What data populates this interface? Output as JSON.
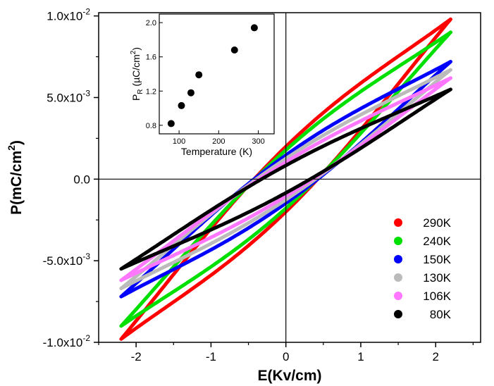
{
  "chart_data": [
    {
      "type": "line",
      "xlabel": "E(Kv/cm)",
      "ylabel_parts": {
        "base": "P(mC/cm",
        "exp": "2",
        "close": ")"
      },
      "xlim": [
        -2.5,
        2.6
      ],
      "ylim": [
        -0.01,
        0.0102
      ],
      "x_ticks": [
        -2,
        -1,
        0,
        1,
        2
      ],
      "x_tick_labels": [
        "-2",
        "-1",
        "0",
        "1",
        "2"
      ],
      "y_ticks": [
        -0.01,
        -0.005,
        0,
        0.005,
        0.01
      ],
      "y_tick_labels": [
        {
          "mant": "-1.0x10",
          "exp": "-2"
        },
        {
          "mant": "-5.0x10",
          "exp": "-3"
        },
        {
          "mant": "0.0",
          "exp": ""
        },
        {
          "mant": "5.0x10",
          "exp": "-3"
        },
        {
          "mant": "1.0x10",
          "exp": "-2"
        }
      ],
      "zero_lines": true,
      "legend_position": "bottom-right",
      "series": [
        {
          "name": "290K",
          "color": "#ff0000",
          "emax": 2.2,
          "pmax": 0.0098,
          "pr": 0.0019,
          "coercive": 0.42,
          "shape": 2.2
        },
        {
          "name": "240K",
          "color": "#00e000",
          "emax": 2.2,
          "pmax": 0.009,
          "pr": 0.0017,
          "coercive": 0.4,
          "shape": 2.1
        },
        {
          "name": "150K",
          "color": "#0000ff",
          "emax": 2.2,
          "pmax": 0.0072,
          "pr": 0.0014,
          "coercive": 0.38,
          "shape": 2.0
        },
        {
          "name": "130K",
          "color": "#bbbbbb",
          "emax": 2.2,
          "pmax": 0.0067,
          "pr": 0.0012,
          "coercive": 0.35,
          "shape": 1.8
        },
        {
          "name": "106K",
          "color": "#ff77ff",
          "emax": 2.2,
          "pmax": 0.0062,
          "pr": 0.001,
          "coercive": 0.32,
          "shape": 1.7
        },
        {
          "name": "80K",
          "color": "#000000",
          "emax": 2.2,
          "pmax": 0.0055,
          "pr": 0.0008,
          "coercive": 0.3,
          "shape": 1.6
        }
      ]
    },
    {
      "type": "scatter",
      "xlabel": "Temperature (K)",
      "ylabel_parts": {
        "p": "P",
        "sub": "R",
        "unit": " (µC/cm",
        "exp": "2",
        "close": ")"
      },
      "xlim": [
        50,
        340
      ],
      "ylim": [
        0.7,
        2.1
      ],
      "x_ticks": [
        100,
        200,
        300
      ],
      "x_tick_labels": [
        "100",
        "200",
        "300"
      ],
      "y_ticks": [
        0.8,
        1.2,
        1.6,
        2.0
      ],
      "y_tick_labels": [
        "0.8",
        "1.2",
        "1.6",
        "2.0"
      ],
      "x": [
        80,
        106,
        130,
        150,
        240,
        290
      ],
      "y": [
        0.82,
        1.03,
        1.18,
        1.39,
        1.68,
        1.94
      ]
    }
  ]
}
